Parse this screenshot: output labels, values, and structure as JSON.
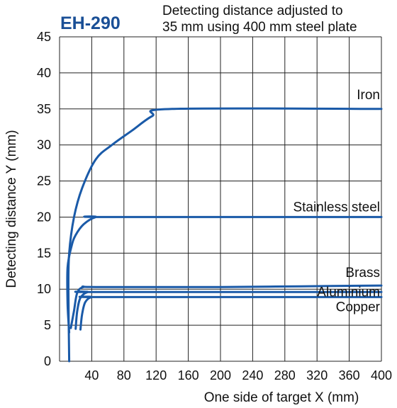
{
  "chart_data": {
    "type": "line",
    "title": "EH-290",
    "subtitle": [
      "Detecting distance adjusted to",
      "35 mm using 400 mm steel plate"
    ],
    "xlabel": "One side of target X (mm)",
    "ylabel": "Detecting distance Y (mm)",
    "xlim": [
      0,
      400
    ],
    "ylim": [
      0,
      45
    ],
    "xticks": [
      40,
      80,
      120,
      160,
      200,
      240,
      280,
      320,
      360,
      400
    ],
    "yticks": [
      0,
      5,
      10,
      15,
      20,
      25,
      30,
      35,
      40,
      45
    ],
    "grid": true,
    "series": [
      {
        "name": "Iron",
        "color": "#1a5aa8",
        "points": [
          [
            12,
            0
          ],
          [
            11,
            10
          ],
          [
            12,
            15
          ],
          [
            18,
            20
          ],
          [
            28,
            24
          ],
          [
            45,
            28
          ],
          [
            65,
            30
          ],
          [
            90,
            32
          ],
          [
            115,
            34
          ],
          [
            140,
            35
          ],
          [
            400,
            35
          ]
        ]
      },
      {
        "name": "Stainless steel",
        "color": "#1a5aa8",
        "points": [
          [
            12,
            4
          ],
          [
            10,
            8
          ],
          [
            10,
            13
          ],
          [
            15,
            16
          ],
          [
            20,
            17.5
          ],
          [
            30,
            19
          ],
          [
            45,
            20
          ],
          [
            60,
            20
          ],
          [
            400,
            20
          ]
        ]
      },
      {
        "name": "Brass",
        "color": "#1a5aa8",
        "points": [
          [
            14,
            4.6
          ],
          [
            18,
            7
          ],
          [
            22,
            9.5
          ],
          [
            30,
            10.3
          ],
          [
            45,
            10.3
          ],
          [
            200,
            10.3
          ],
          [
            300,
            10.4
          ],
          [
            400,
            10.5
          ]
        ]
      },
      {
        "name": "Aluminium",
        "color": "#1a5aa8",
        "points": [
          [
            20,
            4.5
          ],
          [
            22,
            7
          ],
          [
            26,
            8.8
          ],
          [
            35,
            9.6
          ],
          [
            50,
            9.6
          ],
          [
            400,
            9.6
          ]
        ]
      },
      {
        "name": "Copper",
        "color": "#1a5aa8",
        "points": [
          [
            26,
            4.4
          ],
          [
            28,
            6.5
          ],
          [
            32,
            8.2
          ],
          [
            40,
            8.9
          ],
          [
            55,
            8.9
          ],
          [
            400,
            8.9
          ]
        ]
      }
    ]
  }
}
